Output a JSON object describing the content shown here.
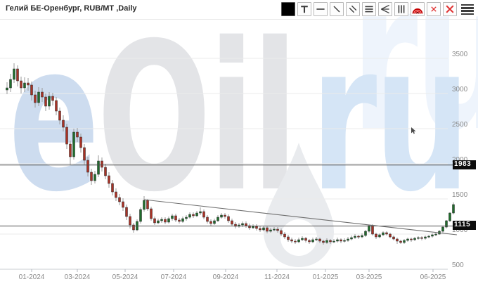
{
  "header": {
    "title": "Гелий БЕ-Оренбург, RUB/MT ,Daily"
  },
  "toolbar": {
    "icons": [
      "black-color-swatch",
      "text-tool",
      "horizontal-line-tool",
      "trend-line-tool",
      "parallel-lines-tool",
      "horizontal-lines-tool",
      "fan-lines-tool",
      "vertical-lines-tool",
      "fibonacci-arcs-tool",
      "delete-selected",
      "delete-all",
      "menu"
    ],
    "accent_red": "#e03131"
  },
  "watermark": {
    "e": "e",
    "oil": "Oil",
    "ru": "ru",
    "ghost_ru": "ru"
  },
  "chart_data": {
    "type": "candlestick",
    "title": "Гелий БЕ-Оренбург, RUB/MT ,Daily",
    "instrument": "Гелий БЕ-Оренбург",
    "unit": "RUB/MT",
    "timeframe": "Daily",
    "grid": true,
    "ylim": [
      500,
      3550
    ],
    "y_axis": {
      "ticks": [
        3500,
        3000,
        2500,
        2000,
        1500,
        1000,
        500
      ]
    },
    "x_axis": {
      "labels": [
        "01-2024",
        "03-2024",
        "05-2024",
        "07-2024",
        "09-2024",
        "11-2024",
        "01-2025",
        "03-2025",
        "06-2025"
      ]
    },
    "colors": {
      "up": "#1f6d2c",
      "down": "#a93226",
      "wick": "#9a9a9a"
    },
    "candles": [
      [
        3050,
        3160,
        2990,
        3080
      ],
      [
        3080,
        3280,
        3020,
        3200
      ],
      [
        3200,
        3430,
        3150,
        3350
      ],
      [
        3350,
        3400,
        3100,
        3180
      ],
      [
        3180,
        3240,
        3000,
        3080
      ],
      [
        3080,
        3230,
        3020,
        3150
      ],
      [
        3150,
        3220,
        3040,
        3120
      ],
      [
        3120,
        3170,
        2900,
        2980
      ],
      [
        2980,
        3040,
        2800,
        2870
      ],
      [
        2870,
        3090,
        2820,
        3020
      ],
      [
        3020,
        3080,
        2880,
        2950
      ],
      [
        2950,
        3000,
        2750,
        2820
      ],
      [
        2820,
        3020,
        2770,
        2960
      ],
      [
        2960,
        3010,
        2830,
        2900
      ],
      [
        2900,
        2950,
        2690,
        2750
      ],
      [
        2750,
        2800,
        2560,
        2620
      ],
      [
        2620,
        2690,
        2460,
        2520
      ],
      [
        2520,
        2570,
        2210,
        2280
      ],
      [
        2280,
        2330,
        1990,
        2100
      ],
      [
        2100,
        2500,
        2060,
        2450
      ],
      [
        2450,
        2510,
        2310,
        2380
      ],
      [
        2380,
        2430,
        2160,
        2230
      ],
      [
        2230,
        2280,
        1990,
        2050
      ],
      [
        2050,
        2100,
        1820,
        1880
      ],
      [
        1880,
        1930,
        1700,
        1760
      ],
      [
        1760,
        1900,
        1720,
        1850
      ],
      [
        1850,
        2120,
        1810,
        2040
      ],
      [
        2040,
        2090,
        1890,
        1950
      ],
      [
        1950,
        2000,
        1780,
        1830
      ],
      [
        1830,
        1880,
        1660,
        1720
      ],
      [
        1720,
        1770,
        1550,
        1600
      ],
      [
        1600,
        1650,
        1470,
        1520
      ],
      [
        1520,
        1570,
        1410,
        1460
      ],
      [
        1460,
        1510,
        1330,
        1380
      ],
      [
        1380,
        1420,
        1200,
        1250
      ],
      [
        1250,
        1290,
        1080,
        1130
      ],
      [
        1130,
        1160,
        1020,
        1060
      ],
      [
        1060,
        1210,
        1040,
        1180
      ],
      [
        1180,
        1380,
        1150,
        1350
      ],
      [
        1350,
        1540,
        1320,
        1480
      ],
      [
        1480,
        1500,
        1330,
        1360
      ],
      [
        1360,
        1390,
        1190,
        1220
      ],
      [
        1220,
        1250,
        1130,
        1160
      ],
      [
        1160,
        1220,
        1140,
        1190
      ],
      [
        1190,
        1240,
        1160,
        1210
      ],
      [
        1210,
        1240,
        1140,
        1170
      ],
      [
        1170,
        1250,
        1150,
        1220
      ],
      [
        1220,
        1290,
        1190,
        1260
      ],
      [
        1260,
        1290,
        1170,
        1200
      ],
      [
        1200,
        1230,
        1150,
        1180
      ],
      [
        1180,
        1250,
        1160,
        1220
      ],
      [
        1220,
        1270,
        1190,
        1240
      ],
      [
        1240,
        1310,
        1220,
        1280
      ],
      [
        1280,
        1310,
        1230,
        1260
      ],
      [
        1260,
        1330,
        1240,
        1300
      ],
      [
        1300,
        1380,
        1270,
        1320
      ],
      [
        1320,
        1350,
        1210,
        1240
      ],
      [
        1240,
        1270,
        1150,
        1180
      ],
      [
        1180,
        1210,
        1120,
        1150
      ],
      [
        1150,
        1220,
        1130,
        1190
      ],
      [
        1190,
        1270,
        1170,
        1240
      ],
      [
        1240,
        1300,
        1220,
        1270
      ],
      [
        1270,
        1300,
        1220,
        1250
      ],
      [
        1250,
        1280,
        1160,
        1190
      ],
      [
        1190,
        1220,
        1110,
        1140
      ],
      [
        1140,
        1170,
        1080,
        1110
      ],
      [
        1110,
        1160,
        1090,
        1130
      ],
      [
        1130,
        1180,
        1100,
        1150
      ],
      [
        1150,
        1180,
        1090,
        1120
      ],
      [
        1120,
        1150,
        1060,
        1090
      ],
      [
        1090,
        1140,
        1070,
        1110
      ],
      [
        1110,
        1140,
        1050,
        1080
      ],
      [
        1080,
        1110,
        1030,
        1060
      ],
      [
        1060,
        1120,
        1040,
        1090
      ],
      [
        1090,
        1110,
        1010,
        1040
      ],
      [
        1040,
        1090,
        1020,
        1060
      ],
      [
        1060,
        1100,
        1040,
        1070
      ],
      [
        1070,
        1100,
        1020,
        1050
      ],
      [
        1050,
        1080,
        970,
        1000
      ],
      [
        1000,
        1030,
        930,
        960
      ],
      [
        960,
        990,
        890,
        920
      ],
      [
        920,
        950,
        870,
        900
      ],
      [
        900,
        930,
        860,
        890
      ],
      [
        890,
        950,
        870,
        920
      ],
      [
        920,
        970,
        900,
        940
      ],
      [
        940,
        960,
        880,
        910
      ],
      [
        910,
        930,
        860,
        890
      ],
      [
        890,
        950,
        870,
        920
      ],
      [
        920,
        960,
        900,
        930
      ],
      [
        930,
        950,
        870,
        900
      ],
      [
        900,
        920,
        850,
        880
      ],
      [
        880,
        940,
        860,
        910
      ],
      [
        910,
        930,
        860,
        890
      ],
      [
        890,
        930,
        870,
        900
      ],
      [
        900,
        950,
        880,
        920
      ],
      [
        920,
        940,
        870,
        900
      ],
      [
        900,
        940,
        880,
        910
      ],
      [
        910,
        960,
        890,
        930
      ],
      [
        930,
        980,
        910,
        950
      ],
      [
        950,
        1000,
        930,
        970
      ],
      [
        970,
        990,
        930,
        960
      ],
      [
        960,
        1010,
        940,
        980
      ],
      [
        980,
        1060,
        960,
        1040
      ],
      [
        1040,
        1130,
        1020,
        1120
      ],
      [
        1120,
        1140,
        980,
        1000
      ],
      [
        1000,
        1020,
        930,
        960
      ],
      [
        960,
        1010,
        940,
        990
      ],
      [
        990,
        1040,
        970,
        1020
      ],
      [
        1020,
        1040,
        980,
        1000
      ],
      [
        1000,
        1020,
        940,
        960
      ],
      [
        960,
        980,
        910,
        930
      ],
      [
        930,
        950,
        860,
        900
      ],
      [
        900,
        920,
        860,
        880
      ],
      [
        880,
        930,
        860,
        910
      ],
      [
        910,
        950,
        890,
        930
      ],
      [
        930,
        950,
        890,
        920
      ],
      [
        920,
        960,
        900,
        940
      ],
      [
        940,
        970,
        920,
        950
      ],
      [
        950,
        970,
        910,
        940
      ],
      [
        940,
        980,
        920,
        960
      ],
      [
        960,
        990,
        940,
        970
      ],
      [
        970,
        1010,
        950,
        990
      ],
      [
        990,
        1020,
        970,
        1000
      ],
      [
        1000,
        1060,
        990,
        1040
      ],
      [
        1040,
        1110,
        1020,
        1100
      ],
      [
        1100,
        1200,
        1080,
        1190
      ],
      [
        1190,
        1310,
        1170,
        1300
      ],
      [
        1300,
        1450,
        1280,
        1420
      ]
    ],
    "overlays": {
      "horizontal_lines": [
        {
          "value": 1983,
          "label": "1983"
        },
        {
          "value": 1115,
          "label": "1115"
        }
      ],
      "trendline": {
        "from_candle": 39,
        "from_value": 1490,
        "to_candle": 128,
        "to_value": 990
      }
    }
  }
}
